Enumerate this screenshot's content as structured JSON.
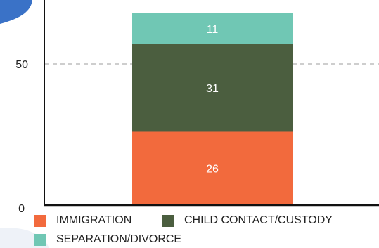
{
  "chart_data": {
    "type": "bar",
    "stacked": true,
    "categories": [
      ""
    ],
    "series": [
      {
        "name": "IMMIGRATION",
        "values": [
          26
        ],
        "color": "#f26a3d"
      },
      {
        "name": "CHILD CONTACT/CUSTODY",
        "values": [
          31
        ],
        "color": "#4b5e3f"
      },
      {
        "name": "SEPARATION/DIVORCE",
        "values": [
          11
        ],
        "color": "#70c7b4"
      }
    ],
    "y_ticks": [
      0,
      50
    ],
    "ylim": [
      0,
      68
    ],
    "grid": "dashed horizontal at 50",
    "legend_placement": "bottom",
    "colors": {
      "axis": "#111111",
      "grid": "#b0b0b0",
      "label_text": "#ffffff",
      "decor_blob": "#3a72c7"
    }
  },
  "legend": {
    "items": [
      {
        "label": "IMMIGRATION",
        "color": "#f26a3d"
      },
      {
        "label": "CHILD CONTACT/CUSTODY",
        "color": "#4b5e3f"
      },
      {
        "label": "SEPARATION/DIVORCE",
        "color": "#70c7b4"
      }
    ]
  }
}
